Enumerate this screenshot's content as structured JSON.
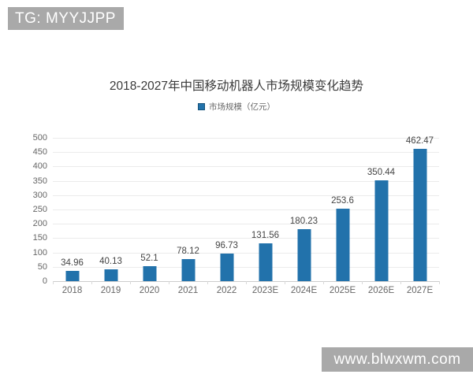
{
  "badges": {
    "top_left": "TG: MYYJJPP",
    "bottom_right": "www.blwxwm.com"
  },
  "chart_data": {
    "type": "bar",
    "title": "2018-2027年中国移动机器人市场规模变化趋势",
    "legend": "市场规模（亿元）",
    "categories": [
      "2018",
      "2019",
      "2020",
      "2021",
      "2022",
      "2023E",
      "2024E",
      "2025E",
      "2026E",
      "2027E"
    ],
    "values": [
      34.96,
      40.13,
      52.1,
      78.12,
      96.73,
      131.56,
      180.23,
      253.6,
      350.44,
      462.47
    ],
    "value_labels": [
      "34.96",
      "40.13",
      "52.1",
      "78.12",
      "96.73",
      "131.56",
      "180.23",
      "253.6",
      "350.44",
      "462.47"
    ],
    "xlabel": "",
    "ylabel": "",
    "ylim": [
      0,
      500
    ],
    "ytick_interval": 50,
    "yticks": [
      "0",
      "50",
      "100",
      "150",
      "200",
      "250",
      "300",
      "350",
      "400",
      "450",
      "500"
    ],
    "grid": true,
    "legend_position": "top-center",
    "bar_color": "#2272ab",
    "legend_swatch_color": "#2272ab",
    "colors": {
      "badge_background": "#a9a9a9",
      "badge_text": "#ffffff",
      "title_text": "#3a3a3a",
      "axis_text": "#666666",
      "value_label_text": "#444444",
      "gridline": "#ebebeb",
      "axis_line": "#cccccc",
      "background": "#ffffff"
    }
  }
}
